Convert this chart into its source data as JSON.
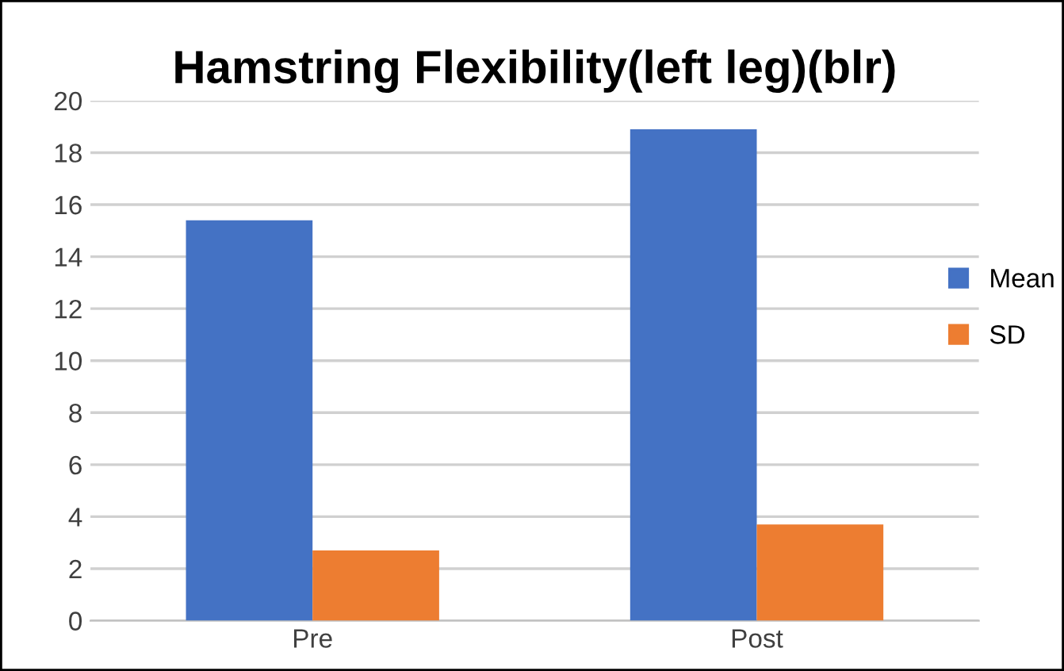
{
  "chart_data": {
    "type": "bar",
    "title": "Hamstring Flexibility(left leg)(blr)",
    "categories": [
      "Pre",
      "Post"
    ],
    "series": [
      {
        "name": "Mean",
        "color": "#4472c4",
        "values": [
          15.4,
          18.9
        ]
      },
      {
        "name": "SD",
        "color": "#ed7d31",
        "values": [
          2.7,
          3.7
        ]
      }
    ],
    "ylim": [
      0,
      20
    ],
    "yticks": [
      0,
      2,
      4,
      6,
      8,
      10,
      12,
      14,
      16,
      18,
      20
    ],
    "grid": "y",
    "legend": "right"
  }
}
